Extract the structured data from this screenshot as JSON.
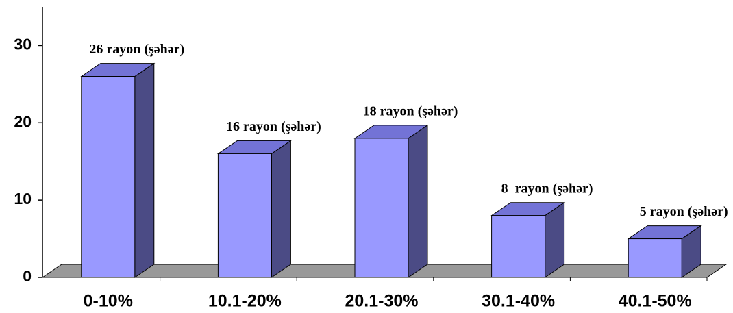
{
  "chart_data": {
    "type": "bar3d",
    "categories": [
      "0-10%",
      "10.1-20%",
      "20.1-30%",
      "30.1-40%",
      "40.1-50%"
    ],
    "values": [
      26,
      16,
      18,
      8,
      5
    ],
    "value_labels": [
      "26 rayon (şəhər)",
      "16 rayon (şəhər)",
      "18 rayon (şəhər)",
      "8  rayon (şəhər)",
      "5 rayon (şəhər)"
    ],
    "color": "#9999ff",
    "ylim": [
      0,
      35
    ],
    "yticks": [
      0,
      10,
      20,
      30
    ],
    "grid": false
  }
}
